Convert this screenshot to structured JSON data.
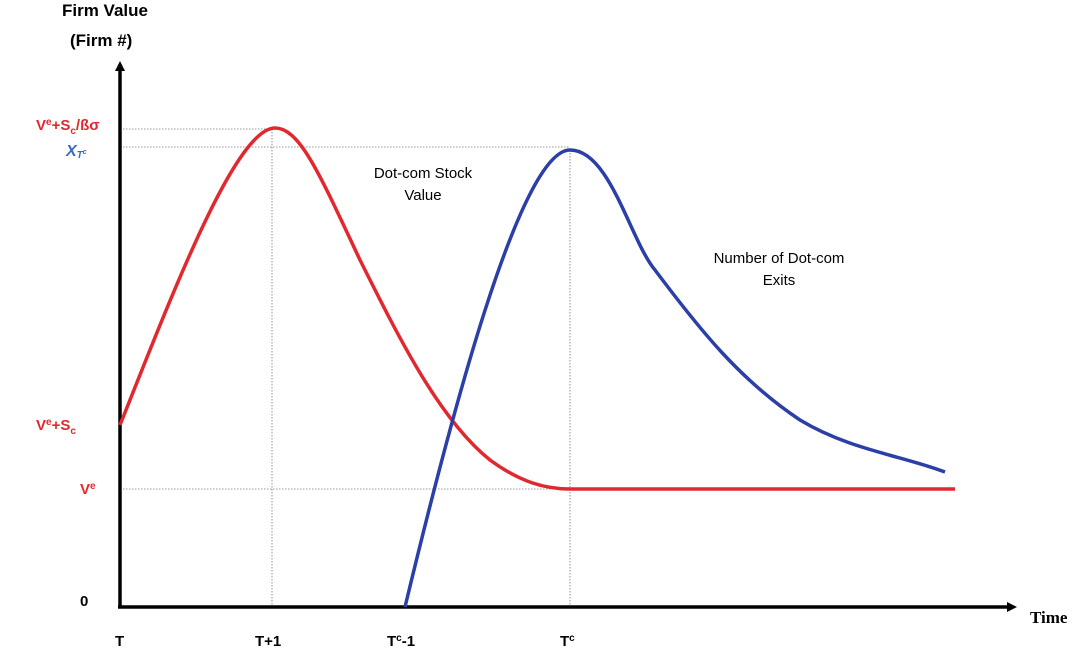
{
  "axis": {
    "y_title": [
      "Firm Value",
      "(Firm #)"
    ],
    "x_title": "Time"
  },
  "y_labels": {
    "top": [
      "V",
      "e",
      "+S",
      "c",
      "/ßσ"
    ],
    "peak": [
      "X",
      "T",
      "c"
    ],
    "mid": [
      "V",
      "e",
      "+S",
      "c"
    ],
    "low": [
      "V",
      "e"
    ],
    "zero": "0"
  },
  "x_labels": {
    "t": "T",
    "t1": "T+1",
    "tc1": [
      "T",
      "c",
      "-1"
    ],
    "tc": [
      "T",
      "c"
    ]
  },
  "curves": {
    "stock": [
      "Dot-com Stock",
      "Value"
    ],
    "exits": [
      "Number of Dot-com",
      "Exits"
    ]
  }
}
